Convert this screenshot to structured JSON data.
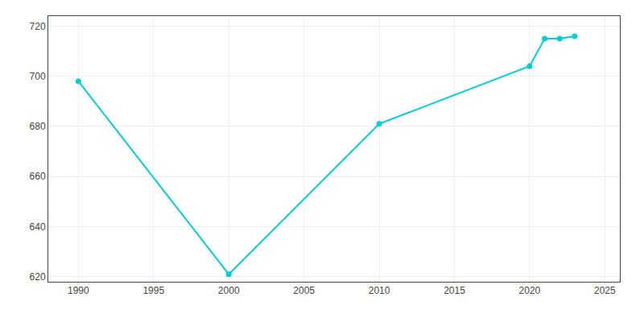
{
  "chart_data": {
    "type": "line",
    "x": [
      1990,
      2000,
      2010,
      2020,
      2021,
      2022,
      2023
    ],
    "values": [
      698,
      621,
      681,
      704,
      715,
      715,
      716
    ],
    "color": "#00CED1",
    "marker": "circle",
    "xlim": [
      1988,
      2026
    ],
    "ylim": [
      618,
      724
    ],
    "xticks": [
      1990,
      1995,
      2000,
      2005,
      2010,
      2015,
      2020,
      2025
    ],
    "yticks": [
      620,
      640,
      660,
      680,
      700,
      720
    ],
    "grid": true
  }
}
